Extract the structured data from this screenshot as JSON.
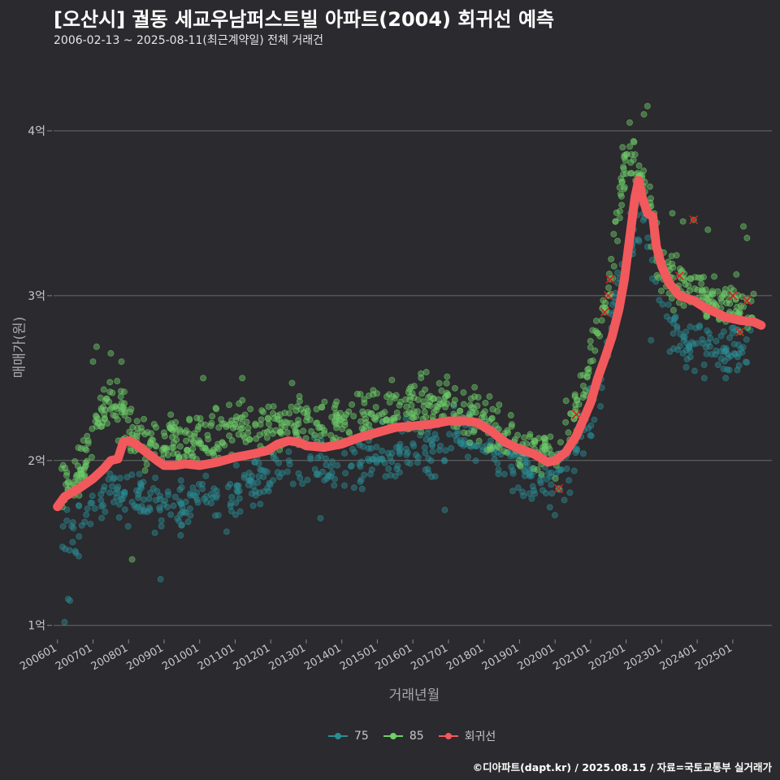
{
  "header": {
    "title": "[오산시] 궐동 세교우남퍼스트빌 아파트(2004) 회귀선 예측",
    "subtitle": "2006-02-13 ~ 2025-08-11(최근계약일) 전체 거래건"
  },
  "footer": {
    "source": "©디아파트(dapt.kr) / 2025.08.15 / 자료=국토교통부 실거래가"
  },
  "colors": {
    "s75": "#2a8d94",
    "s85": "#6fcf6a",
    "regression": "#f2595c",
    "grid": "#6a6a6a",
    "cross": "#d62020"
  },
  "chart_data": {
    "type": "scatter",
    "title": "[오산시] 궐동 세교우남퍼스트빌 아파트(2004) 회귀선 예측",
    "xlabel": "거래년월",
    "ylabel": "매매가(원)",
    "xlim": [
      2005.8,
      2026.1
    ],
    "ylim": [
      0.9,
      4.35
    ],
    "y_ticks": [
      1,
      2,
      3,
      4
    ],
    "y_tick_labels": [
      "1억",
      "2억",
      "3억",
      "4억"
    ],
    "x_ticks": [
      2006,
      2007,
      2008,
      2009,
      2010,
      2011,
      2012,
      2013,
      2014,
      2015,
      2016,
      2017,
      2018,
      2019,
      2020,
      2021,
      2022,
      2023,
      2024,
      2025
    ],
    "x_tick_labels": [
      "200601",
      "200701",
      "200801",
      "200901",
      "201001",
      "201101",
      "201201",
      "201301",
      "201401",
      "201501",
      "201601",
      "201701",
      "201801",
      "201901",
      "202001",
      "202101",
      "202201",
      "202301",
      "202401",
      "202501"
    ],
    "legend": [
      "75",
      "85",
      "회귀선"
    ],
    "trend_75": [
      [
        2006.1,
        1.55
      ],
      [
        2006.5,
        1.6
      ],
      [
        2007.0,
        1.72
      ],
      [
        2007.5,
        1.82
      ],
      [
        2008.0,
        1.78
      ],
      [
        2008.5,
        1.75
      ],
      [
        2009.0,
        1.72
      ],
      [
        2009.5,
        1.72
      ],
      [
        2010.0,
        1.75
      ],
      [
        2010.5,
        1.74
      ],
      [
        2011.0,
        1.78
      ],
      [
        2011.5,
        1.88
      ],
      [
        2012.0,
        1.93
      ],
      [
        2012.5,
        1.98
      ],
      [
        2013.0,
        1.97
      ],
      [
        2013.5,
        1.96
      ],
      [
        2014.0,
        1.96
      ],
      [
        2014.5,
        2.0
      ],
      [
        2015.0,
        2.02
      ],
      [
        2015.5,
        2.05
      ],
      [
        2016.0,
        2.07
      ],
      [
        2016.5,
        2.1
      ],
      [
        2017.0,
        2.14
      ],
      [
        2017.5,
        2.15
      ],
      [
        2018.0,
        2.1
      ],
      [
        2018.5,
        2.0
      ],
      [
        2019.0,
        1.96
      ],
      [
        2019.5,
        1.9
      ],
      [
        2020.0,
        1.85
      ],
      [
        2020.5,
        2.0
      ],
      [
        2021.0,
        2.3
      ],
      [
        2021.5,
        2.7
      ],
      [
        2022.0,
        3.3
      ],
      [
        2022.5,
        3.5
      ],
      [
        2023.0,
        2.9
      ],
      [
        2023.5,
        2.75
      ],
      [
        2024.0,
        2.72
      ],
      [
        2024.5,
        2.67
      ],
      [
        2025.0,
        2.65
      ],
      [
        2025.6,
        2.68
      ]
    ],
    "trend_85": [
      [
        2006.1,
        1.85
      ],
      [
        2006.5,
        1.9
      ],
      [
        2007.0,
        2.1
      ],
      [
        2007.3,
        2.35
      ],
      [
        2007.7,
        2.3
      ],
      [
        2008.0,
        2.25
      ],
      [
        2008.5,
        2.1
      ],
      [
        2009.0,
        2.1
      ],
      [
        2009.5,
        2.12
      ],
      [
        2010.0,
        2.15
      ],
      [
        2010.5,
        2.14
      ],
      [
        2011.0,
        2.18
      ],
      [
        2011.5,
        2.2
      ],
      [
        2012.0,
        2.22
      ],
      [
        2012.5,
        2.22
      ],
      [
        2013.0,
        2.2
      ],
      [
        2013.5,
        2.2
      ],
      [
        2014.0,
        2.22
      ],
      [
        2014.5,
        2.25
      ],
      [
        2015.0,
        2.28
      ],
      [
        2015.5,
        2.3
      ],
      [
        2016.0,
        2.32
      ],
      [
        2016.5,
        2.33
      ],
      [
        2017.0,
        2.35
      ],
      [
        2017.5,
        2.3
      ],
      [
        2018.0,
        2.22
      ],
      [
        2018.5,
        2.15
      ],
      [
        2019.0,
        2.1
      ],
      [
        2019.5,
        2.05
      ],
      [
        2020.0,
        2.05
      ],
      [
        2020.5,
        2.25
      ],
      [
        2021.0,
        2.6
      ],
      [
        2021.5,
        3.05
      ],
      [
        2022.0,
        3.85
      ],
      [
        2022.5,
        3.75
      ],
      [
        2023.0,
        3.15
      ],
      [
        2023.5,
        3.05
      ],
      [
        2024.0,
        3.05
      ],
      [
        2024.5,
        2.95
      ],
      [
        2025.0,
        2.93
      ],
      [
        2025.6,
        2.95
      ]
    ],
    "outliers_75": [
      [
        2006.2,
        1.02
      ],
      [
        2006.3,
        1.16
      ],
      [
        2006.35,
        1.15
      ],
      [
        2006.5,
        1.45
      ],
      [
        2006.6,
        1.42
      ],
      [
        2008.9,
        1.28
      ],
      [
        2013.4,
        1.65
      ],
      [
        2016.9,
        1.7
      ],
      [
        2022.7,
        2.73
      ],
      [
        2023.6,
        2.65
      ],
      [
        2024.2,
        2.5
      ],
      [
        2024.8,
        2.5
      ]
    ],
    "outliers_85": [
      [
        2007.1,
        2.69
      ],
      [
        2007.5,
        2.65
      ],
      [
        2007.0,
        2.6
      ],
      [
        2007.8,
        2.6
      ],
      [
        2008.1,
        1.4
      ],
      [
        2010.1,
        2.5
      ],
      [
        2011.2,
        2.5
      ],
      [
        2012.6,
        2.47
      ],
      [
        2021.9,
        3.9
      ],
      [
        2022.1,
        4.05
      ],
      [
        2022.5,
        4.1
      ],
      [
        2022.6,
        4.15
      ],
      [
        2022.0,
        3.74
      ],
      [
        2021.7,
        3.45
      ],
      [
        2023.3,
        3.5
      ],
      [
        2023.6,
        3.45
      ],
      [
        2024.3,
        3.4
      ],
      [
        2025.3,
        3.42
      ],
      [
        2025.4,
        3.35
      ]
    ],
    "cancelled": [
      [
        2020.1,
        1.83
      ],
      [
        2020.6,
        2.28
      ],
      [
        2021.4,
        2.9
      ],
      [
        2021.5,
        3.0
      ],
      [
        2021.55,
        3.1
      ],
      [
        2023.5,
        3.12
      ],
      [
        2023.9,
        3.46
      ],
      [
        2025.0,
        3.0
      ],
      [
        2025.2,
        2.78
      ],
      [
        2025.4,
        2.97
      ]
    ],
    "regression": [
      [
        2006.0,
        1.72
      ],
      [
        2006.2,
        1.78
      ],
      [
        2006.6,
        1.83
      ],
      [
        2007.0,
        1.89
      ],
      [
        2007.3,
        1.95
      ],
      [
        2007.5,
        2.0
      ],
      [
        2007.7,
        2.01
      ],
      [
        2007.85,
        2.11
      ],
      [
        2008.0,
        2.12
      ],
      [
        2008.2,
        2.1
      ],
      [
        2008.5,
        2.05
      ],
      [
        2008.8,
        2.0
      ],
      [
        2009.0,
        1.97
      ],
      [
        2009.3,
        1.97
      ],
      [
        2009.6,
        1.98
      ],
      [
        2010.0,
        1.97
      ],
      [
        2010.5,
        1.99
      ],
      [
        2011.0,
        2.02
      ],
      [
        2011.5,
        2.04
      ],
      [
        2011.9,
        2.06
      ],
      [
        2012.2,
        2.1
      ],
      [
        2012.5,
        2.12
      ],
      [
        2012.8,
        2.11
      ],
      [
        2013.0,
        2.09
      ],
      [
        2013.5,
        2.08
      ],
      [
        2014.0,
        2.1
      ],
      [
        2014.5,
        2.14
      ],
      [
        2015.0,
        2.17
      ],
      [
        2015.5,
        2.2
      ],
      [
        2016.0,
        2.21
      ],
      [
        2016.5,
        2.22
      ],
      [
        2017.0,
        2.24
      ],
      [
        2017.5,
        2.24
      ],
      [
        2017.8,
        2.23
      ],
      [
        2018.2,
        2.18
      ],
      [
        2018.6,
        2.11
      ],
      [
        2019.0,
        2.07
      ],
      [
        2019.4,
        2.04
      ],
      [
        2019.8,
        1.99
      ],
      [
        2020.0,
        2.0
      ],
      [
        2020.3,
        2.05
      ],
      [
        2020.6,
        2.15
      ],
      [
        2020.8,
        2.25
      ],
      [
        2021.0,
        2.35
      ],
      [
        2021.2,
        2.5
      ],
      [
        2021.4,
        2.62
      ],
      [
        2021.6,
        2.75
      ],
      [
        2021.8,
        2.92
      ],
      [
        2021.95,
        3.1
      ],
      [
        2022.1,
        3.35
      ],
      [
        2022.25,
        3.6
      ],
      [
        2022.35,
        3.7
      ],
      [
        2022.45,
        3.6
      ],
      [
        2022.6,
        3.5
      ],
      [
        2022.75,
        3.48
      ],
      [
        2022.85,
        3.3
      ],
      [
        2023.0,
        3.18
      ],
      [
        2023.2,
        3.08
      ],
      [
        2023.5,
        3.0
      ],
      [
        2023.9,
        2.97
      ],
      [
        2024.2,
        2.93
      ],
      [
        2024.5,
        2.9
      ],
      [
        2024.8,
        2.87
      ],
      [
        2025.2,
        2.85
      ],
      [
        2025.6,
        2.84
      ],
      [
        2025.8,
        2.82
      ]
    ]
  }
}
